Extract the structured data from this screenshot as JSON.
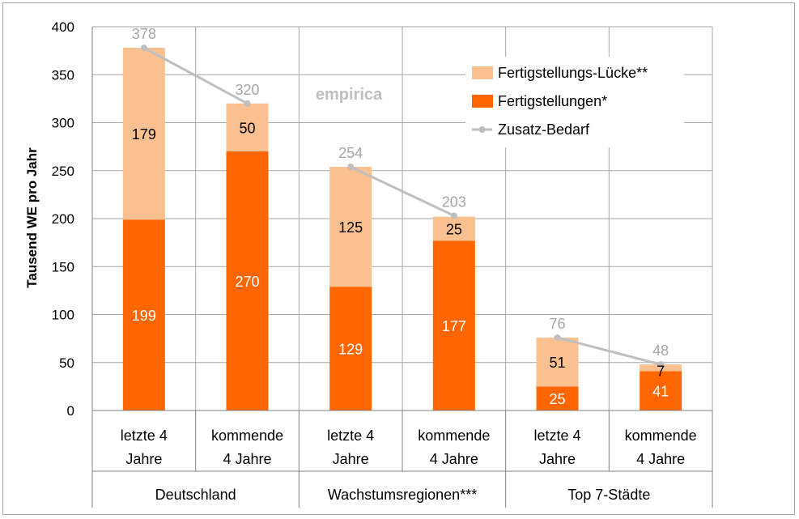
{
  "chart_data": {
    "type": "bar",
    "stacked": true,
    "ylabel": "Tausend WE pro Jahr",
    "ylim": [
      0,
      400
    ],
    "yticks": [
      0,
      50,
      100,
      150,
      200,
      250,
      300,
      350,
      400
    ],
    "grid": true,
    "watermark": "empirica",
    "legend_position": "top-right",
    "categories": [
      {
        "line1": "letzte 4",
        "line2": "Jahre"
      },
      {
        "line1": "kommende",
        "line2": "4 Jahre"
      },
      {
        "line1": "letzte 4",
        "line2": "Jahre"
      },
      {
        "line1": "kommende",
        "line2": "4 Jahre"
      },
      {
        "line1": "letzte 4",
        "line2": "Jahre"
      },
      {
        "line1": "kommende",
        "line2": "4 Jahre"
      }
    ],
    "groups": [
      "Deutschland",
      "Wachstumsregionen***",
      "Top 7-Städte"
    ],
    "series": [
      {
        "name": "Fertigstellungen*",
        "color": "#ff6600",
        "values": [
          199,
          270,
          129,
          177,
          25,
          41
        ]
      },
      {
        "name": "Fertigstellungs-Lücke**",
        "color": "#fac090",
        "values": [
          179,
          50,
          125,
          25,
          51,
          7
        ]
      },
      {
        "name": "Zusatz-Bedarf",
        "color": "#bfbfbf",
        "type": "line",
        "values": [
          378,
          320,
          254,
          203,
          76,
          48
        ]
      }
    ]
  }
}
